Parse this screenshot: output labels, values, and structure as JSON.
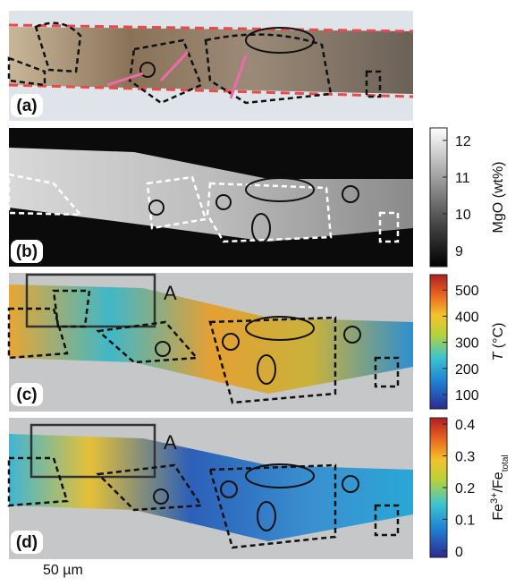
{
  "panels": [
    {
      "label": "(a)"
    },
    {
      "label": "(b)",
      "colorbar": {
        "title": [
          {
            "text": "MgO (wt%)",
            "style": "normal"
          }
        ],
        "lim": [
          8.56,
          12.34
        ],
        "ticks": [
          9,
          10,
          11,
          12
        ],
        "scale": "gray"
      }
    },
    {
      "label": "(c)",
      "box_label": "A",
      "colorbar": {
        "title": [
          {
            "text": "T",
            "style": "italic"
          },
          {
            "text": " (°C)",
            "style": "normal"
          }
        ],
        "lim": [
          45,
          559
        ],
        "ticks": [
          100,
          200,
          300,
          400,
          500
        ],
        "scale": "jet"
      }
    },
    {
      "label": "(d)",
      "box_label": "A",
      "colorbar": {
        "title": [
          {
            "text": "Fe",
            "style": "normal"
          },
          {
            "text": "3+",
            "style": "sup"
          },
          {
            "text": "/Fe",
            "style": "normal"
          },
          {
            "text": "total",
            "style": "sub"
          }
        ],
        "lim": [
          -0.02,
          0.42
        ],
        "ticks": [
          0,
          0.1,
          0.2,
          0.3,
          0.4
        ],
        "scale": "jet"
      }
    }
  ],
  "scale_bar": "50 µm"
}
